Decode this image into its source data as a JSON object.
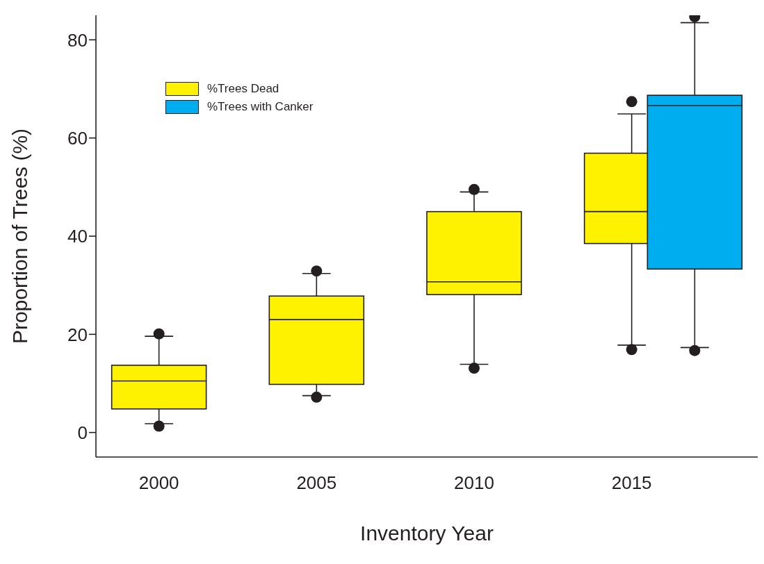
{
  "chart_data": {
    "type": "box",
    "xlabel": "Inventory Year",
    "ylabel": "Proportion of Trees (%)",
    "xlim": [
      1998,
      2019
    ],
    "xticks": [
      2000,
      2005,
      2010,
      2015
    ],
    "ylim": [
      -5,
      85
    ],
    "yticks": [
      0,
      20,
      40,
      60,
      80
    ],
    "legend": "top left",
    "series": [
      {
        "name": "%Trees Dead",
        "color": "#fff200",
        "x": [
          2000,
          2005,
          2010,
          2015
        ],
        "boxes": [
          {
            "low": 1.8,
            "q1": 4.8,
            "median": 10.5,
            "q3": 13.7,
            "high": 19.6,
            "outliers": [
              20.1,
              1.3
            ]
          },
          {
            "low": 7.5,
            "q1": 9.8,
            "median": 23.0,
            "q3": 27.8,
            "high": 32.4,
            "outliers": [
              32.9,
              7.2
            ]
          },
          {
            "low": 13.9,
            "q1": 28.1,
            "median": 30.7,
            "q3": 45.0,
            "high": 49.0,
            "outliers": [
              49.5,
              13.1
            ]
          },
          {
            "low": 17.8,
            "q1": 38.5,
            "median": 45.0,
            "q3": 56.9,
            "high": 64.9,
            "outliers": [
              67.4,
              16.9
            ]
          }
        ]
      },
      {
        "name": "%Trees with Canker",
        "color": "#00aeef",
        "x": [
          2017
        ],
        "boxes": [
          {
            "low": 17.3,
            "q1": 33.3,
            "median": 66.6,
            "q3": 68.7,
            "high": 83.5,
            "outliers": [
              84.7,
              16.7
            ]
          }
        ]
      }
    ]
  }
}
